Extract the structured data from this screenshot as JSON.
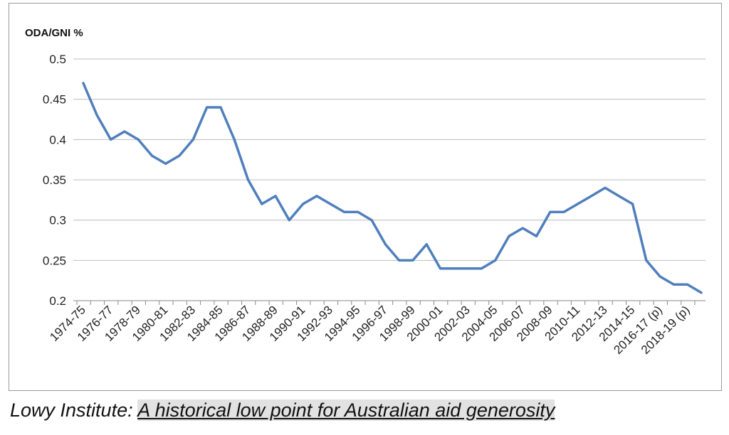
{
  "chart_data": {
    "type": "line",
    "ylabel": "ODA/GNI %",
    "ylim": [
      0.2,
      0.5
    ],
    "yticks": [
      "0.5",
      "0.45",
      "0.4",
      "0.35",
      "0.3",
      "0.25",
      "0.2"
    ],
    "grid": true,
    "line_color": "#4f7fbc",
    "x": [
      "1974-75",
      "1975-76",
      "1976-77",
      "1977-78",
      "1978-79",
      "1979-80",
      "1980-81",
      "1981-82",
      "1982-83",
      "1983-84",
      "1984-85",
      "1985-86",
      "1986-87",
      "1987-88",
      "1988-89",
      "1989-90",
      "1990-91",
      "1991-92",
      "1992-93",
      "1993-94",
      "1994-95",
      "1995-96",
      "1996-97",
      "1997-98",
      "1998-99",
      "1999-00",
      "2000-01",
      "2001-02",
      "2002-03",
      "2003-04",
      "2004-05",
      "2005-06",
      "2006-07",
      "2007-08",
      "2008-09",
      "2009-10",
      "2010-11",
      "2011-12",
      "2012-13",
      "2013-14",
      "2014-15",
      "2015-16",
      "2016-17 (p)",
      "2017-18",
      "2018-19 (p)",
      "2019-20"
    ],
    "x_tick_labels": [
      "1974-75",
      "1976-77",
      "1978-79",
      "1980-81",
      "1982-83",
      "1984-85",
      "1986-87",
      "1988-89",
      "1990-91",
      "1992-93",
      "1994-95",
      "1996-97",
      "1998-99",
      "2000-01",
      "2002-03",
      "2004-05",
      "2006-07",
      "2008-09",
      "2010-11",
      "2012-13",
      "2014-15",
      "2016-17 (p)",
      "2018-19 (p)"
    ],
    "series": [
      {
        "values": [
          0.47,
          0.43,
          0.4,
          0.41,
          0.4,
          0.38,
          0.37,
          0.38,
          0.4,
          0.44,
          0.44,
          0.4,
          0.35,
          0.32,
          0.33,
          0.3,
          0.32,
          0.33,
          0.32,
          0.31,
          0.31,
          0.3,
          0.27,
          0.25,
          0.25,
          0.27,
          0.24,
          0.24,
          0.24,
          0.24,
          0.25,
          0.28,
          0.29,
          0.28,
          0.31,
          0.31,
          0.32,
          0.33,
          0.34,
          0.33,
          0.32,
          0.25,
          0.23,
          0.22,
          0.22,
          0.21
        ]
      }
    ]
  },
  "caption": {
    "source_prefix": "Lowy Institute: ",
    "link_text": "A historical low point for Australian aid generosity"
  }
}
